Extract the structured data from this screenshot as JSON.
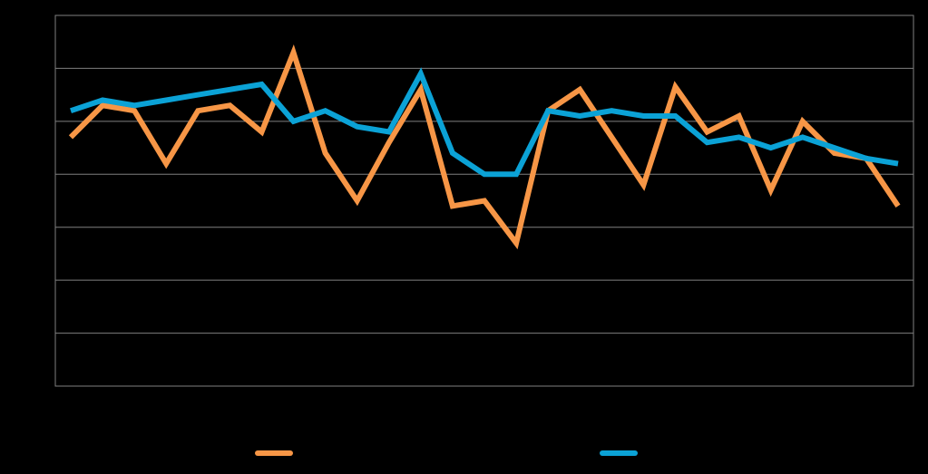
{
  "chart_data": {
    "type": "line",
    "title": "",
    "xlabel": "",
    "ylabel": "",
    "ylim": [
      0,
      7
    ],
    "grid": true,
    "legend_position": "bottom",
    "x": [
      1,
      2,
      3,
      4,
      5,
      6,
      7,
      8,
      9,
      10,
      11,
      12,
      13,
      14,
      15,
      16,
      17,
      18,
      19,
      20,
      21,
      22,
      23,
      24,
      25,
      26,
      27
    ],
    "series": [
      {
        "color": "#f79646",
        "values": [
          4.7,
          5.3,
          5.2,
          4.2,
          5.2,
          5.3,
          4.8,
          6.3,
          4.4,
          3.5,
          4.6,
          5.6,
          3.4,
          3.5,
          2.7,
          5.2,
          5.6,
          4.7,
          3.8,
          5.65,
          4.8,
          5.1,
          3.7,
          5.0,
          4.4,
          4.3,
          3.4
        ],
        "legend_label": ""
      },
      {
        "color": "#0ba2d6",
        "values": [
          5.2,
          5.4,
          5.3,
          5.4,
          5.5,
          5.6,
          5.7,
          5.0,
          5.2,
          4.9,
          4.8,
          5.9,
          4.4,
          4.0,
          4.0,
          5.2,
          5.1,
          5.2,
          5.1,
          5.1,
          4.6,
          4.7,
          4.5,
          4.7,
          4.5,
          4.3,
          4.2
        ],
        "legend_label": ""
      }
    ]
  }
}
